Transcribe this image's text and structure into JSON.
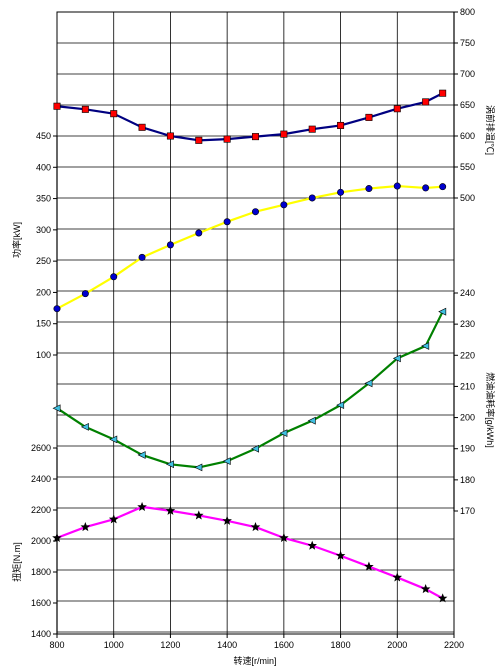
{
  "chart_data": {
    "type": "line",
    "grid": true,
    "x": [
      800,
      900,
      1000,
      1100,
      1200,
      1300,
      1400,
      1500,
      1600,
      1700,
      1800,
      1900,
      2000,
      2100,
      2160
    ],
    "xlabel": "转速[r/min]",
    "xlim": [
      800,
      2200
    ],
    "xticks": [
      800,
      1000,
      1200,
      1400,
      1600,
      1800,
      2000,
      2200
    ],
    "axes": {
      "power": {
        "label": "功率[kW]",
        "side": "left",
        "ticks": [
          100,
          150,
          200,
          250,
          300,
          350,
          400,
          450
        ]
      },
      "torque": {
        "label": "扭矩[N.m]",
        "side": "left",
        "ticks": [
          1400,
          1600,
          1800,
          2000,
          2200,
          2400,
          2600
        ]
      },
      "exhaust_temp": {
        "label": "涡前排温[℃]",
        "side": "right",
        "ticks": [
          500,
          550,
          600,
          650,
          700,
          750,
          800
        ]
      },
      "fuel": {
        "label": "燃油油耗率[g/kWh]",
        "side": "right",
        "ticks": [
          170,
          180,
          190,
          200,
          210,
          220,
          230,
          240
        ]
      }
    },
    "series": [
      {
        "axis": "exhaust_temp",
        "color": "#000080",
        "marker": "square",
        "marker_color": "#ff0000",
        "values": [
          648,
          643,
          636,
          614,
          600,
          593,
          595,
          599,
          603,
          611,
          617,
          630,
          644,
          655,
          669
        ]
      },
      {
        "axis": "power",
        "color": "#ffff00",
        "marker": "circle",
        "marker_color": "#0000cc",
        "values": [
          174,
          198,
          225,
          256,
          276,
          295,
          313,
          329,
          340,
          351,
          360,
          366,
          370,
          367,
          369
        ]
      },
      {
        "axis": "fuel",
        "color": "#008000",
        "marker": "triangle",
        "marker_color": "#40c0e0",
        "values": [
          203,
          197,
          193,
          188,
          185,
          184,
          186,
          190,
          195,
          199,
          204,
          211,
          219,
          223,
          234
        ]
      },
      {
        "axis": "torque",
        "color": "#ff00ff",
        "marker": "star",
        "marker_color": "#000000",
        "values": [
          2020,
          2090,
          2140,
          2220,
          2195,
          2165,
          2130,
          2090,
          2020,
          1970,
          1905,
          1835,
          1765,
          1690,
          1630
        ]
      }
    ]
  }
}
